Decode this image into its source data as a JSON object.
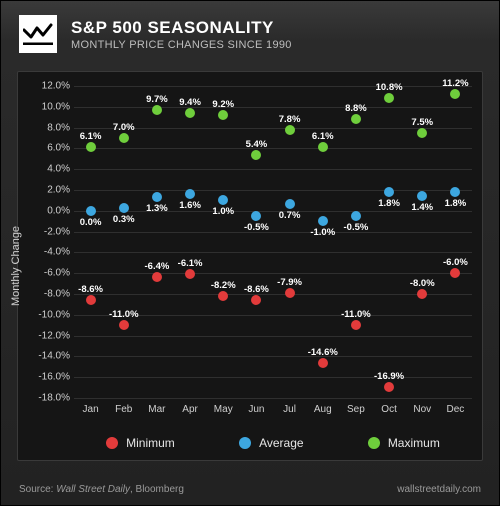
{
  "header": {
    "title": "S&P 500 SEASONALITY",
    "subtitle": "MONTHLY PRICE CHANGES SINCE 1990"
  },
  "chart": {
    "type": "scatter",
    "y_axis_label": "Monthly Change",
    "ymin": -18.0,
    "ymax": 12.0,
    "ytick_step": 2.0,
    "tick_suffix": "%",
    "grid_color": "#2f2f2f",
    "background_color": "#151515",
    "text_color": "#cfcfcf",
    "categories": [
      "Jan",
      "Feb",
      "Mar",
      "Apr",
      "May",
      "Jun",
      "Jul",
      "Aug",
      "Sep",
      "Oct",
      "Nov",
      "Dec"
    ],
    "series": [
      {
        "name": "Minimum",
        "color": "#e23b3b",
        "label_color": "#ffffff",
        "label_position": "above",
        "values": [
          -8.6,
          -11.0,
          -6.4,
          -6.1,
          -8.2,
          -8.6,
          -7.9,
          -14.6,
          -11.0,
          -16.9,
          -8.0,
          -6.0
        ]
      },
      {
        "name": "Average",
        "color": "#3da7e0",
        "label_color": "#ffffff",
        "label_position": "below",
        "values": [
          0.0,
          0.3,
          1.3,
          1.6,
          1.0,
          -0.5,
          0.7,
          -1.0,
          -0.5,
          1.8,
          1.4,
          1.8
        ]
      },
      {
        "name": "Maximum",
        "color": "#6fce3c",
        "label_color": "#ffffff",
        "label_position": "above",
        "values": [
          6.1,
          7.0,
          9.7,
          9.4,
          9.2,
          5.4,
          7.8,
          6.1,
          8.8,
          10.8,
          7.5,
          11.2
        ]
      }
    ]
  },
  "legend": {
    "items": [
      {
        "label": "Minimum",
        "color": "#e23b3b"
      },
      {
        "label": "Average",
        "color": "#3da7e0"
      },
      {
        "label": "Maximum",
        "color": "#6fce3c"
      }
    ]
  },
  "footer": {
    "source_label": "Source: ",
    "source_name": "Wall Street Daily",
    "source_extra": ", Bloomberg",
    "site": "wallstreetdaily.com"
  }
}
